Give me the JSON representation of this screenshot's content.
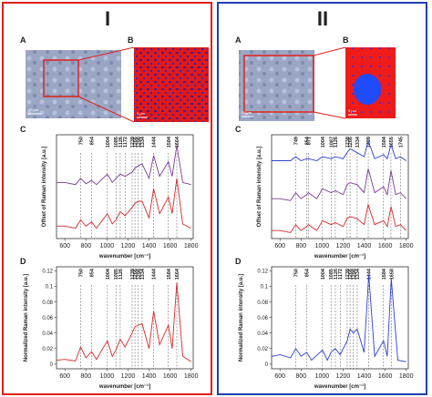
{
  "panels": [
    {
      "title": "I",
      "color": "#e0201b",
      "image_a": {
        "label": "A",
        "scale": "20 µm"
      },
      "image_b": {
        "label": "B",
        "scale": "5 µm"
      },
      "charts": [
        {
          "label": "C",
          "type": "line",
          "ylabel": "Offset of Raman intensity [a.u.]",
          "xlabel": "wavenumber [cm⁻¹]",
          "xlim": [
            520,
            1820
          ],
          "xticks": [
            600,
            800,
            1000,
            1200,
            1400,
            1600,
            1800
          ],
          "ylim": [
            0.6,
            3.1
          ],
          "peaks": [
            750,
            854,
            1004,
            1085,
            1126,
            1172,
            1239,
            1266,
            1298,
            1334,
            1444,
            1584,
            1664
          ],
          "x": [
            520,
            600,
            700,
            750,
            800,
            854,
            900,
            1004,
            1050,
            1085,
            1126,
            1172,
            1239,
            1266,
            1298,
            1334,
            1400,
            1444,
            1500,
            1584,
            1620,
            1664,
            1720,
            1800
          ],
          "series": [
            {
              "color": "#7b3a96",
              "values": [
                1.95,
                1.95,
                1.9,
                2.05,
                1.92,
                2.0,
                1.9,
                2.15,
                1.95,
                2.05,
                2.15,
                2.1,
                2.2,
                2.3,
                2.35,
                2.4,
                2.05,
                2.6,
                2.1,
                2.45,
                2.1,
                2.85,
                1.95,
                1.9
              ]
            },
            {
              "color": "#d42a2a",
              "values": [
                0.9,
                0.9,
                0.85,
                1.05,
                0.9,
                1.0,
                0.85,
                1.2,
                0.95,
                1.05,
                1.25,
                1.15,
                1.35,
                1.45,
                1.5,
                1.5,
                1.1,
                1.8,
                1.2,
                1.6,
                1.2,
                2.05,
                0.95,
                0.85
              ]
            }
          ]
        },
        {
          "label": "D",
          "type": "line",
          "ylabel": "Normalized Raman intensity [a.u.]",
          "xlabel": "wavenumber [cm⁻¹]",
          "xlim": [
            520,
            1820
          ],
          "xticks": [
            600,
            800,
            1000,
            1200,
            1400,
            1600,
            1800
          ],
          "ylim": [
            -0.006,
            0.125
          ],
          "yticks": [
            0,
            0.02,
            0.04,
            0.06,
            0.08,
            0.1,
            0.12
          ],
          "peaks": [
            750,
            854,
            1004,
            1085,
            1126,
            1239,
            1266,
            1298,
            1334,
            1444,
            1584,
            1664
          ],
          "x": [
            520,
            600,
            700,
            750,
            800,
            854,
            900,
            1004,
            1050,
            1085,
            1126,
            1172,
            1239,
            1266,
            1298,
            1334,
            1400,
            1444,
            1500,
            1584,
            1620,
            1664,
            1720,
            1800
          ],
          "series": [
            {
              "color": "#d42a2a",
              "values": [
                0.005,
                0.006,
                0.004,
                0.022,
                0.008,
                0.016,
                0.006,
                0.03,
                0.01,
                0.018,
                0.032,
                0.022,
                0.04,
                0.048,
                0.05,
                0.052,
                0.02,
                0.068,
                0.025,
                0.05,
                0.02,
                0.105,
                0.01,
                0.003
              ]
            }
          ]
        }
      ]
    },
    {
      "title": "II",
      "color": "#2040b0",
      "image_a": {
        "label": "A",
        "scale": "20 µm"
      },
      "image_b": {
        "label": "B",
        "scale": "5 µm"
      },
      "charts": [
        {
          "label": "C",
          "type": "line",
          "ylabel": "Offset of Raman intensity [a.u.]",
          "xlabel": "wavenumber [cm⁻¹]",
          "xlim": [
            520,
            1820
          ],
          "xticks": [
            600,
            800,
            1000,
            1200,
            1400,
            1600,
            1800
          ],
          "ylim": [
            0.6,
            3.2
          ],
          "peaks": [
            749,
            854,
            871,
            1004,
            1087,
            1126,
            1238,
            1266,
            1334,
            1439,
            1584,
            1655,
            1745
          ],
          "x": [
            520,
            600,
            700,
            749,
            800,
            854,
            871,
            950,
            1004,
            1087,
            1126,
            1200,
            1238,
            1266,
            1334,
            1400,
            1439,
            1500,
            1584,
            1620,
            1655,
            1700,
            1745,
            1800
          ],
          "series": [
            {
              "color": "#2a3fd0",
              "values": [
                2.55,
                2.55,
                2.55,
                2.65,
                2.55,
                2.6,
                2.6,
                2.55,
                2.65,
                2.6,
                2.65,
                2.6,
                2.75,
                2.85,
                2.75,
                2.65,
                3.05,
                2.6,
                2.7,
                2.6,
                2.95,
                2.6,
                2.65,
                2.55
              ]
            },
            {
              "color": "#7b3a96",
              "values": [
                1.6,
                1.6,
                1.55,
                1.75,
                1.6,
                1.7,
                1.75,
                1.6,
                1.85,
                1.75,
                1.8,
                1.7,
                1.95,
                2.0,
                1.95,
                1.75,
                2.35,
                1.75,
                1.9,
                1.7,
                2.3,
                1.7,
                1.75,
                1.6
              ]
            },
            {
              "color": "#d42a2a",
              "values": [
                0.8,
                0.8,
                0.75,
                0.95,
                0.8,
                0.9,
                0.95,
                0.8,
                1.05,
                0.95,
                1.0,
                0.9,
                1.1,
                1.15,
                1.1,
                0.95,
                1.45,
                0.95,
                1.05,
                0.9,
                1.4,
                0.9,
                0.95,
                0.8
              ]
            }
          ]
        },
        {
          "label": "D",
          "type": "line",
          "ylabel": "Normalized Raman intensity [a.u.]",
          "xlabel": "wavenumber [cm⁻¹]",
          "xlim": [
            520,
            1820
          ],
          "xticks": [
            600,
            800,
            1000,
            1200,
            1400,
            1600,
            1800
          ],
          "ylim": [
            -0.006,
            0.125
          ],
          "yticks": [
            0,
            0.02,
            0.04,
            0.06,
            0.08,
            0.1,
            0.12
          ],
          "peaks": [
            750,
            854,
            1004,
            1085,
            1126,
            1172,
            1239,
            1266,
            1298,
            1334,
            1444,
            1584,
            1658
          ],
          "x": [
            520,
            600,
            700,
            750,
            800,
            854,
            900,
            1004,
            1050,
            1085,
            1126,
            1172,
            1239,
            1266,
            1298,
            1334,
            1400,
            1444,
            1500,
            1584,
            1620,
            1658,
            1720,
            1800
          ],
          "series": [
            {
              "color": "#2a3fd0",
              "values": [
                0.01,
                0.012,
                0.008,
                0.02,
                0.01,
                0.015,
                0.005,
                0.018,
                0.005,
                0.015,
                0.02,
                0.012,
                0.03,
                0.045,
                0.04,
                0.045,
                0.015,
                0.115,
                0.01,
                0.03,
                0.01,
                0.11,
                0.005,
                0.003
              ]
            }
          ]
        }
      ]
    }
  ]
}
